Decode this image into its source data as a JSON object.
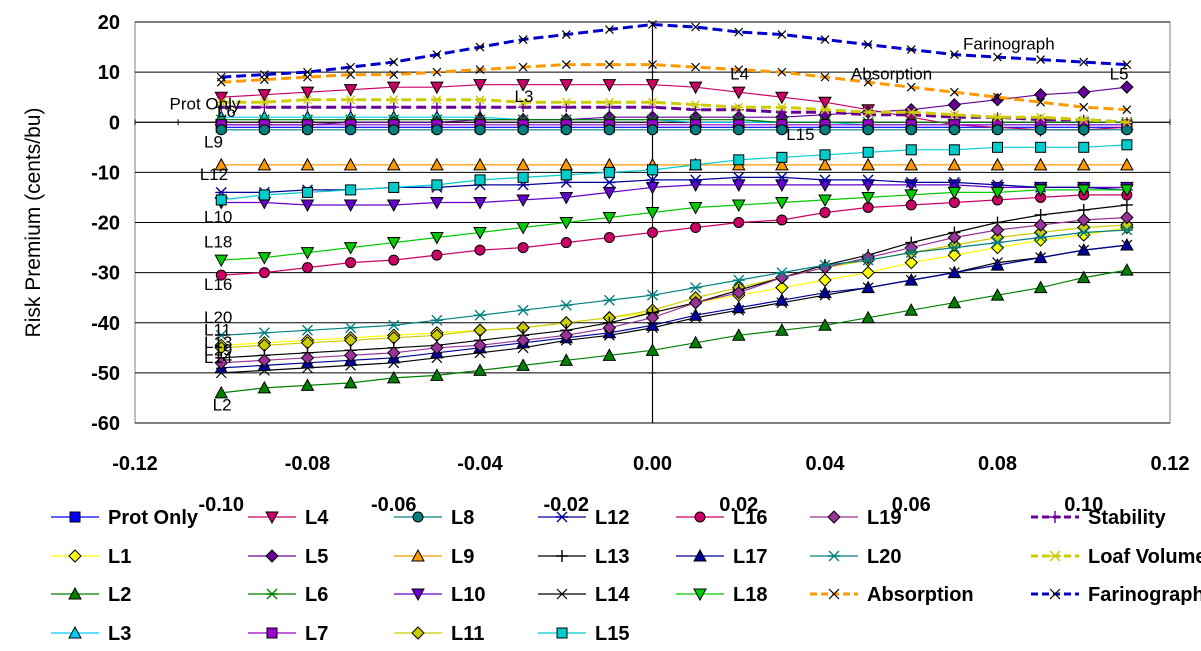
{
  "chart_data": {
    "type": "line",
    "ylabel": "Risk Premium (cents/bu)",
    "xlabel": "",
    "xlim": [
      -0.12,
      0.12
    ],
    "ylim": [
      -60,
      20
    ],
    "x_ticks_upper": [
      "-0.12",
      "-0.08",
      "-0.04",
      "0.00",
      "0.04",
      "0.08",
      "0.12"
    ],
    "x_ticks_lower": [
      "-0.10",
      "-0.06",
      "-0.02",
      "0.02",
      "0.06",
      "0.10"
    ],
    "y_ticks": [
      "20",
      "10",
      "0",
      "-10",
      "-20",
      "-30",
      "-40",
      "-50",
      "-60"
    ],
    "grid": "horizontal",
    "legend_position": "bottom",
    "x": [
      -0.1,
      -0.09,
      -0.08,
      -0.07,
      -0.06,
      -0.05,
      -0.04,
      -0.03,
      -0.02,
      -0.01,
      0.0,
      0.01,
      0.02,
      0.03,
      0.04,
      0.05,
      0.06,
      0.07,
      0.08,
      0.09,
      0.1,
      0.11
    ],
    "series": [
      {
        "name": "Prot Only",
        "color": "#0000ff",
        "marker": "square",
        "dash": "",
        "values": [
          -1,
          -1,
          -1,
          -1,
          -1,
          -1,
          -1,
          -1,
          -1,
          -1,
          -1,
          -1,
          -1,
          -1,
          -1,
          -1,
          -1,
          -1,
          -1,
          -1,
          -1,
          -1
        ]
      },
      {
        "name": "L1",
        "color": "#ffff00",
        "marker": "diamond",
        "dash": "",
        "values": [
          -44.5,
          -44,
          -43.5,
          -43,
          -42.5,
          -42,
          -41.5,
          -41,
          -40,
          -39,
          -38,
          -36,
          -34.5,
          -33,
          -31.5,
          -30,
          -28,
          -26.5,
          -25,
          -23.5,
          -22.5,
          -21
        ]
      },
      {
        "name": "L2",
        "color": "#008000",
        "marker": "triangle-up",
        "dash": "",
        "values": [
          -54,
          -53,
          -52.5,
          -52,
          -51,
          -50.5,
          -49.5,
          -48.5,
          -47.5,
          -46.5,
          -45.5,
          -44,
          -42.5,
          -41.5,
          -40.5,
          -39,
          -37.5,
          -36,
          -34.5,
          -33,
          -31,
          -29.5
        ]
      },
      {
        "name": "L3",
        "color": "#00ccff",
        "marker": "triangle-up",
        "dash": "",
        "values": [
          1,
          1,
          1,
          1,
          1,
          1,
          1,
          0.5,
          0.5,
          0.5,
          0.5,
          0,
          0,
          0,
          0,
          -0.5,
          -0.5,
          -0.5,
          -0.5,
          -0.5,
          -0.5,
          -0.5
        ]
      },
      {
        "name": "L4",
        "color": "#cc0066",
        "marker": "triangle-down",
        "dash": "",
        "values": [
          5,
          5.5,
          6,
          6.5,
          7,
          7,
          7.5,
          7.5,
          7.5,
          7.5,
          7.5,
          7,
          6,
          5,
          4,
          2.5,
          1,
          -0.5,
          -1,
          -1.5,
          -1.5,
          -1
        ]
      },
      {
        "name": "L5",
        "color": "#660099",
        "marker": "diamond",
        "dash": "",
        "values": [
          -0.5,
          -0.5,
          -0.5,
          0,
          0,
          0,
          0.5,
          0.5,
          0.5,
          1,
          1,
          1,
          1,
          1,
          1.5,
          2,
          2.5,
          3.5,
          4.5,
          5.5,
          6,
          7
        ]
      },
      {
        "name": "L6",
        "color": "#008000",
        "marker": "star",
        "dash": "",
        "values": [
          0.5,
          0.5,
          0.5,
          0.5,
          0.5,
          0.5,
          0.5,
          0.5,
          0.5,
          0.5,
          0.5,
          0.5,
          0.5,
          0,
          0,
          0,
          0,
          0,
          0,
          0,
          0,
          0
        ]
      },
      {
        "name": "L7",
        "color": "#9900cc",
        "marker": "square",
        "dash": "",
        "values": [
          -0.5,
          -0.5,
          -0.5,
          -0.5,
          -0.5,
          -0.5,
          -0.5,
          -0.5,
          -0.5,
          -0.5,
          -0.5,
          -0.5,
          -0.5,
          -0.5,
          -0.5,
          -0.5,
          -0.5,
          -0.5,
          -0.5,
          -0.5,
          -0.5,
          -0.5
        ]
      },
      {
        "name": "L8",
        "color": "#008080",
        "marker": "circle",
        "dash": "",
        "values": [
          -1.5,
          -1.5,
          -1.5,
          -1.5,
          -1.5,
          -1.5,
          -1.5,
          -1.5,
          -1.5,
          -1.5,
          -1.5,
          -1.5,
          -1.5,
          -1.5,
          -1.5,
          -1.5,
          -1.5,
          -1.5,
          -1.5,
          -1.5,
          -1.5,
          -1.5
        ]
      },
      {
        "name": "L9",
        "color": "#ff9900",
        "marker": "triangle-up",
        "dash": "",
        "values": [
          -8.5,
          -8.5,
          -8.5,
          -8.5,
          -8.5,
          -8.5,
          -8.5,
          -8.5,
          -8.5,
          -8.5,
          -8.5,
          -8.5,
          -8.5,
          -8.5,
          -8.5,
          -8.5,
          -8.5,
          -8.5,
          -8.5,
          -8.5,
          -8.5,
          -8.5
        ]
      },
      {
        "name": "L10",
        "color": "#6600cc",
        "marker": "triangle-down",
        "dash": "",
        "values": [
          -16,
          -16,
          -16.5,
          -16.5,
          -16.5,
          -16,
          -16,
          -15.5,
          -15,
          -14,
          -13,
          -12.5,
          -12.5,
          -12.5,
          -12.5,
          -12.5,
          -12.5,
          -12.5,
          -13,
          -13,
          -13,
          -13
        ]
      },
      {
        "name": "L11",
        "color": "#cccc00",
        "marker": "diamond",
        "dash": "",
        "values": [
          -45,
          -44.5,
          -44,
          -43.5,
          -43,
          -42.5,
          -41.5,
          -41,
          -40,
          -39,
          -37.5,
          -35,
          -33,
          -31,
          -29,
          -27.5,
          -26,
          -24.5,
          -23,
          -22,
          -21,
          -20.5
        ]
      },
      {
        "name": "L12",
        "color": "#000099",
        "marker": "star",
        "dash": "",
        "values": [
          -14,
          -14,
          -13.5,
          -13.5,
          -13,
          -13,
          -12.5,
          -12.5,
          -12,
          -12,
          -11.5,
          -11.5,
          -11,
          -11,
          -11.5,
          -11.5,
          -12,
          -12,
          -12.5,
          -13,
          -13,
          -13.5
        ]
      },
      {
        "name": "L13",
        "color": "#000000",
        "marker": "plus",
        "dash": "",
        "values": [
          -47,
          -46.5,
          -46,
          -45.5,
          -45,
          -44.5,
          -43.5,
          -42.5,
          -41.5,
          -40,
          -38,
          -36,
          -33.5,
          -31,
          -28.5,
          -26.5,
          -24,
          -22,
          -20,
          -18.5,
          -17.5,
          -16.5
        ]
      },
      {
        "name": "L14",
        "color": "#000000",
        "marker": "x",
        "dash": "",
        "values": [
          -50,
          -49.5,
          -49,
          -48.5,
          -48,
          -47,
          -46,
          -45,
          -43.5,
          -42.5,
          -41,
          -39,
          -37.5,
          -36,
          -34.5,
          -33,
          -31.5,
          -30,
          -28,
          -27,
          -25.5,
          -24.5
        ]
      },
      {
        "name": "L15",
        "color": "#00cccc",
        "marker": "square",
        "dash": "",
        "values": [
          -15.5,
          -14.5,
          -14,
          -13.5,
          -13,
          -12.5,
          -11.5,
          -11,
          -10.5,
          -10,
          -9.5,
          -8.5,
          -7.5,
          -7,
          -6.5,
          -6,
          -5.5,
          -5.5,
          -5,
          -5,
          -5,
          -4.5
        ]
      },
      {
        "name": "L16",
        "color": "#cc0066",
        "marker": "circle",
        "dash": "",
        "values": [
          -30.5,
          -30,
          -29,
          -28,
          -27.5,
          -26.5,
          -25.5,
          -25,
          -24,
          -23,
          -22,
          -21,
          -20,
          -19.5,
          -18,
          -17,
          -16.5,
          -16,
          -15.5,
          -15,
          -14.5,
          -14.5
        ]
      },
      {
        "name": "L17",
        "color": "#000099",
        "marker": "triangle-up",
        "dash": "",
        "values": [
          -49,
          -48.5,
          -48,
          -47.5,
          -47,
          -46,
          -45,
          -44,
          -43,
          -42,
          -40.5,
          -38.5,
          -37,
          -35.5,
          -34,
          -33,
          -31.5,
          -30,
          -28.5,
          -27,
          -25.5,
          -24.5
        ]
      },
      {
        "name": "L18",
        "color": "#00cc00",
        "marker": "triangle-down",
        "dash": "",
        "values": [
          -27.5,
          -27,
          -26,
          -25,
          -24,
          -23,
          -22,
          -21,
          -20,
          -19,
          -18,
          -17,
          -16.5,
          -16,
          -15.5,
          -15,
          -14.5,
          -14,
          -14,
          -13.5,
          -13.5,
          -13.5
        ]
      },
      {
        "name": "L19",
        "color": "#993399",
        "marker": "diamond",
        "dash": "",
        "values": [
          -48,
          -47.5,
          -47,
          -46.5,
          -46,
          -45,
          -44.5,
          -43.5,
          -42.5,
          -41,
          -39,
          -36,
          -34,
          -31,
          -29,
          -27,
          -25,
          -23,
          -21.5,
          -20.5,
          -19.5,
          -19
        ]
      },
      {
        "name": "L20",
        "color": "#008080",
        "marker": "star",
        "dash": "",
        "values": [
          -42.5,
          -42,
          -41.5,
          -41,
          -40.5,
          -39.5,
          -38.5,
          -37.5,
          -36.5,
          -35.5,
          -34.5,
          -33,
          -31.5,
          -30,
          -28.5,
          -27.5,
          -26,
          -25,
          -24,
          -23,
          -22,
          -21.5
        ]
      },
      {
        "name": "Absorption",
        "color": "#ff9900",
        "marker": "x",
        "dash": "10,5",
        "values": [
          8,
          8.5,
          9,
          9.5,
          9.5,
          10,
          10.5,
          11,
          11.5,
          11.5,
          11.5,
          11,
          10.5,
          10,
          9,
          8,
          7,
          6,
          5,
          4,
          3,
          2.5
        ]
      },
      {
        "name": "Stability",
        "color": "#660099",
        "marker": "plus",
        "dash": "10,5",
        "values": [
          3,
          3,
          3,
          3,
          3,
          3,
          3,
          3,
          3,
          3,
          3,
          2.5,
          2.5,
          2,
          2,
          1.5,
          1.5,
          1,
          1,
          0.5,
          0.5,
          0
        ]
      },
      {
        "name": "Loaf Volume",
        "color": "#cccc00",
        "marker": "star",
        "dash": "10,5",
        "values": [
          4,
          4,
          4.5,
          4.5,
          4.5,
          4.5,
          4.5,
          4,
          4,
          4,
          4,
          3.5,
          3,
          3,
          2.5,
          2,
          2,
          1.5,
          1,
          1,
          0.5,
          0
        ]
      },
      {
        "name": "Farinograph",
        "color": "#0000cc",
        "marker": "x",
        "dash": "10,5",
        "values": [
          9,
          9.5,
          10,
          11,
          12,
          13.5,
          15,
          16.5,
          17.5,
          18.5,
          19.5,
          19,
          18,
          17.5,
          16.5,
          15.5,
          14.5,
          13.5,
          13,
          12.5,
          12,
          11.5
        ]
      }
    ],
    "annotations": [
      {
        "text": "Prot Only",
        "x": -0.112,
        "y": 2.5
      },
      {
        "text": "L6",
        "x": -0.101,
        "y": 1
      },
      {
        "text": "L9",
        "x": -0.104,
        "y": -5
      },
      {
        "text": "L12",
        "x": -0.105,
        "y": -11.5
      },
      {
        "text": "L10",
        "x": -0.104,
        "y": -20
      },
      {
        "text": "L18",
        "x": -0.104,
        "y": -25
      },
      {
        "text": "L16",
        "x": -0.104,
        "y": -33.5
      },
      {
        "text": "L20",
        "x": -0.104,
        "y": -40
      },
      {
        "text": "L11",
        "x": -0.104,
        "y": -42.5
      },
      {
        "text": "L13",
        "x": -0.104,
        "y": -45
      },
      {
        "text": "L19",
        "x": -0.104,
        "y": -46.5
      },
      {
        "text": "L14",
        "x": -0.104,
        "y": -48
      },
      {
        "text": "L2",
        "x": -0.102,
        "y": -57.5
      },
      {
        "text": "L3",
        "x": -0.032,
        "y": 4
      },
      {
        "text": "L4",
        "x": 0.018,
        "y": 8.5
      },
      {
        "text": "L15",
        "x": 0.031,
        "y": -3.5
      },
      {
        "text": "Absorption",
        "x": 0.046,
        "y": 8.5
      },
      {
        "text": "Farinograph",
        "x": 0.072,
        "y": 14.5
      },
      {
        "text": "L5",
        "x": 0.106,
        "y": 8.5
      }
    ]
  }
}
